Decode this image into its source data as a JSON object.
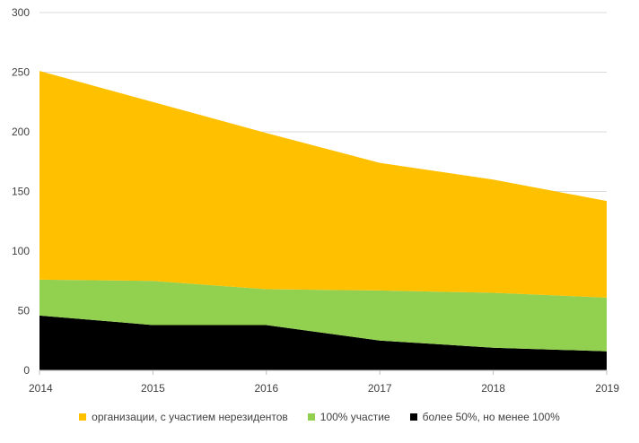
{
  "chart_data": {
    "type": "area",
    "stacked": true,
    "x": [
      "2014",
      "2015",
      "2016",
      "2017",
      "2018",
      "2019"
    ],
    "ylim": [
      0,
      300
    ],
    "yticks": [
      0,
      50,
      100,
      150,
      200,
      250,
      300
    ],
    "grid": true,
    "legend_position": "bottom",
    "series": [
      {
        "name": "более 50%, но менее 100%",
        "color": "#000000",
        "values": [
          46,
          38,
          38,
          25,
          19,
          16
        ]
      },
      {
        "name": "100% участие",
        "color": "#92d050",
        "values": [
          30,
          37,
          30,
          42,
          46,
          45
        ]
      },
      {
        "name": "организации, с участием нерезидентов",
        "color": "#ffc000",
        "values": [
          175,
          150,
          131,
          107,
          95,
          81
        ]
      }
    ],
    "legend_order": [
      2,
      1,
      0
    ]
  }
}
